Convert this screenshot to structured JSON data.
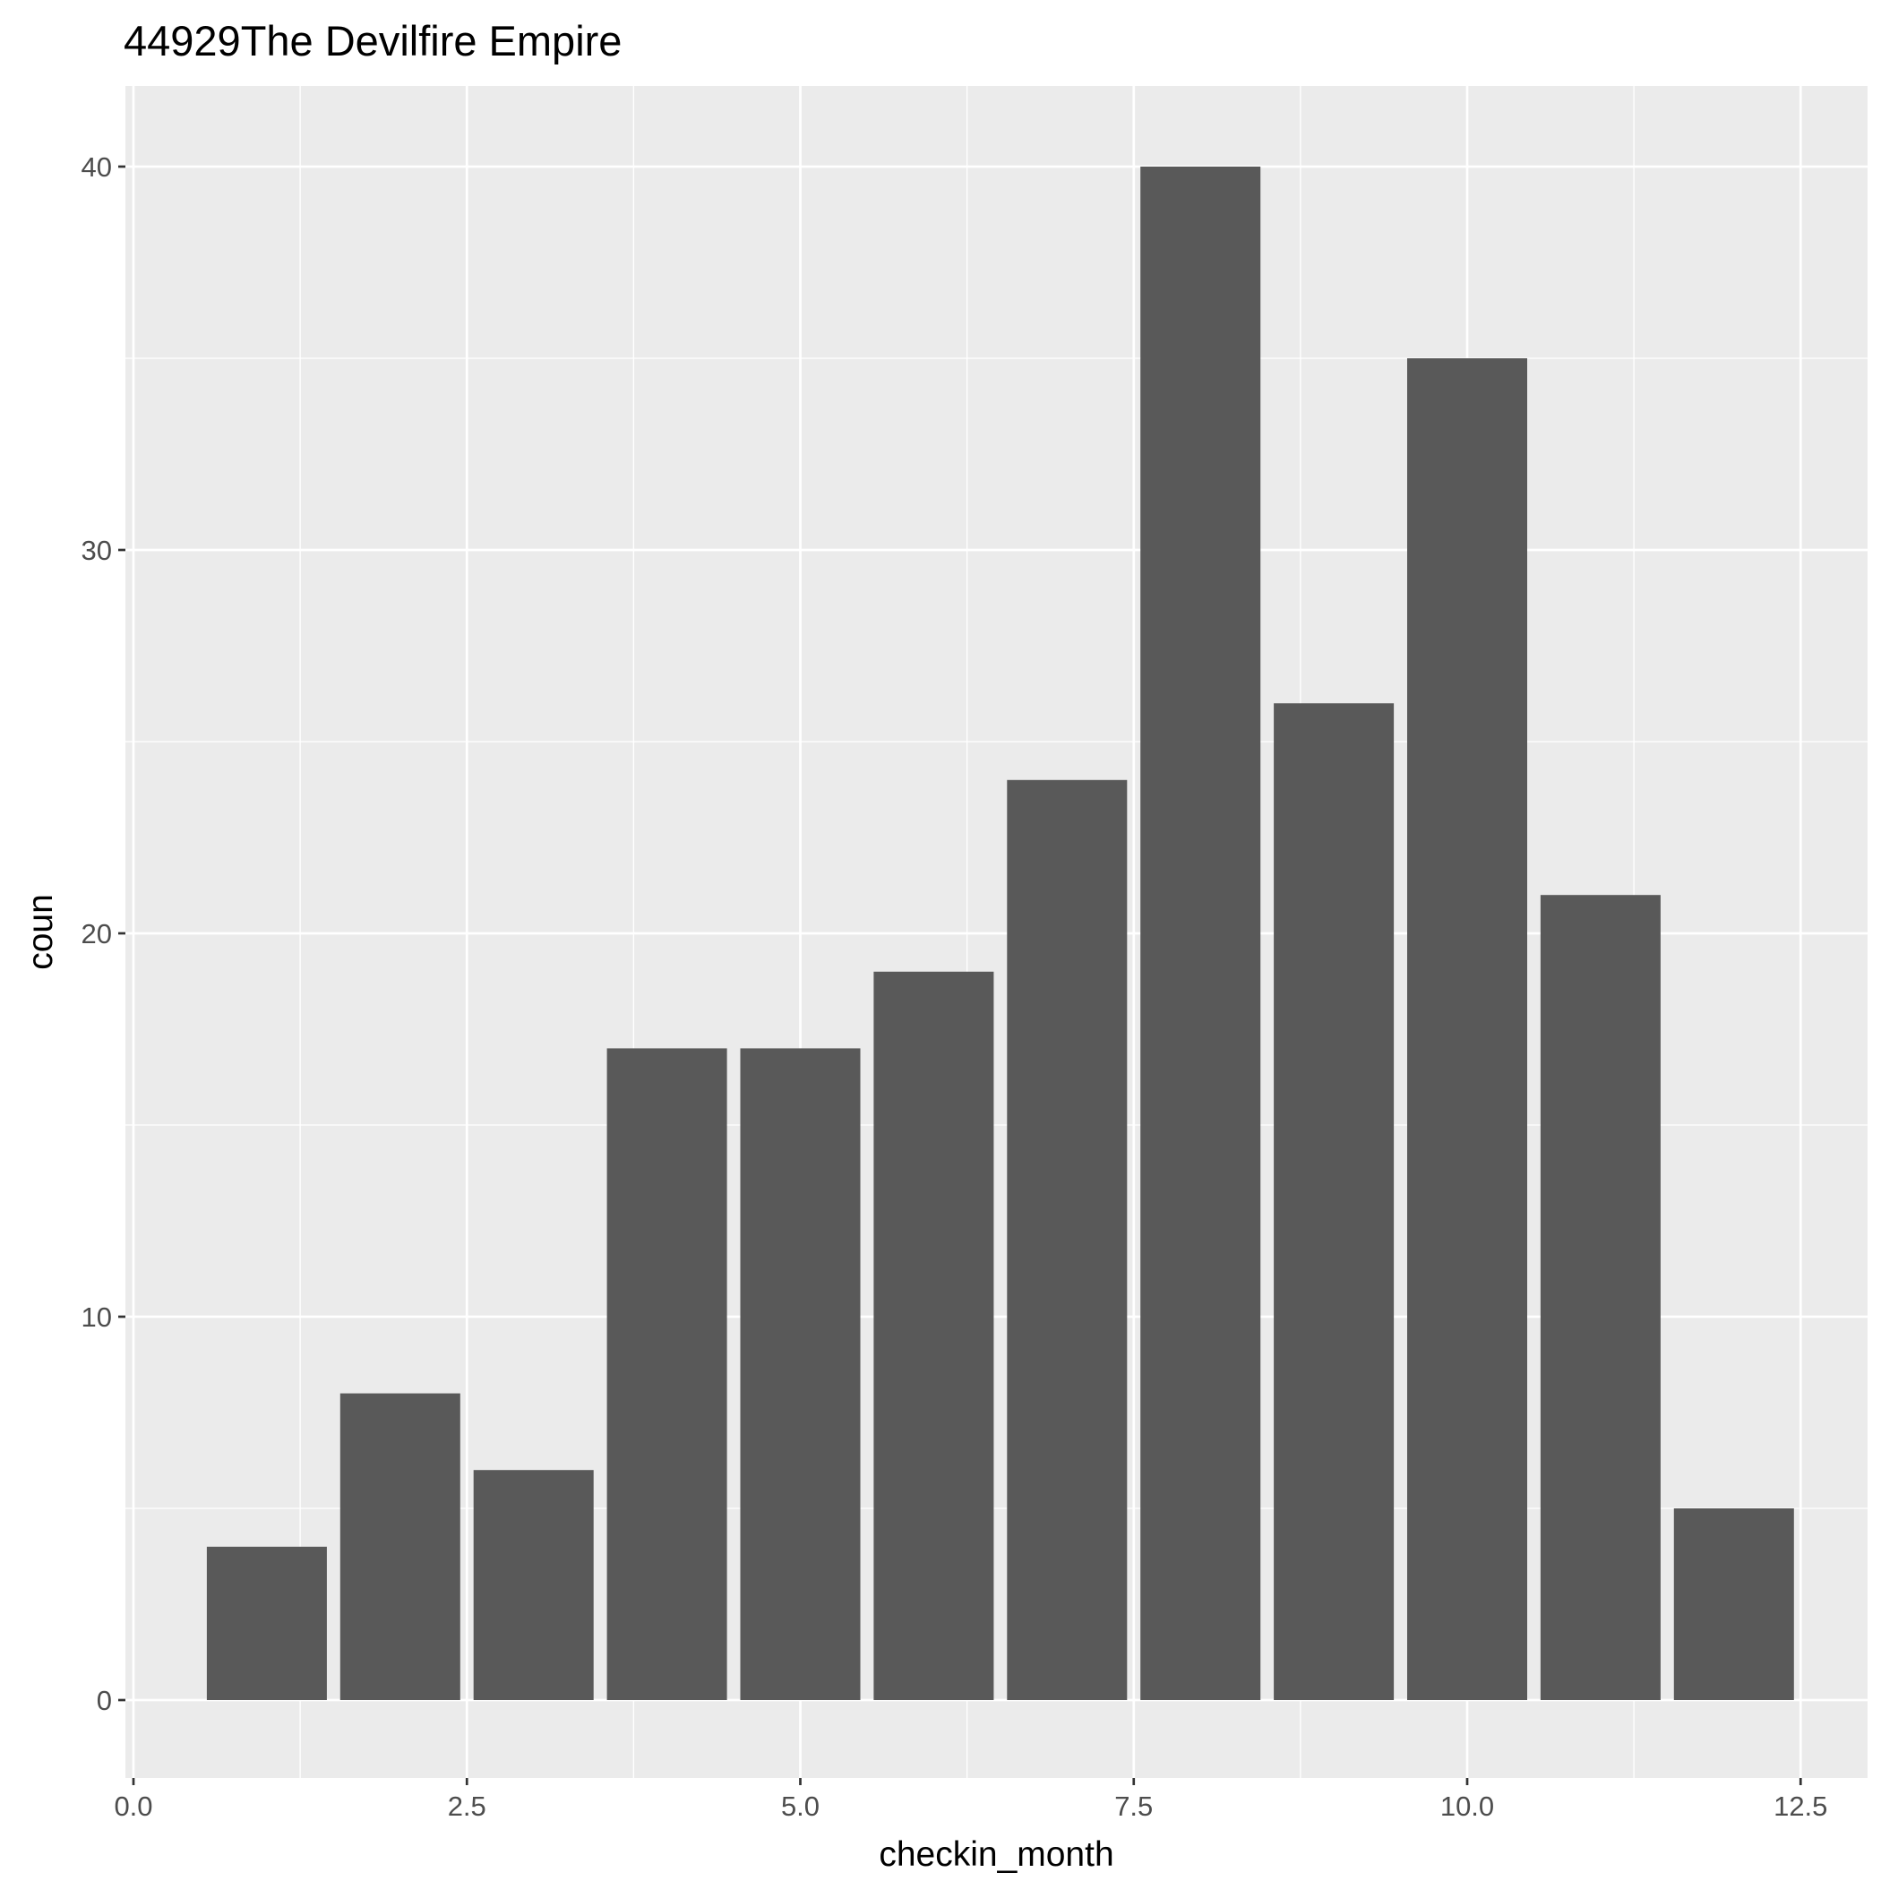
{
  "chart_data": {
    "type": "bar",
    "title": "44929The Devilfire Empire",
    "xlabel": "checkin_month",
    "ylabel": "coun",
    "x": [
      1,
      2,
      3,
      4,
      5,
      6,
      7,
      8,
      9,
      10,
      11,
      12
    ],
    "values": [
      4,
      8,
      6,
      17,
      17,
      19,
      24,
      40,
      26,
      35,
      21,
      5
    ],
    "bar_width": 0.9,
    "xlim": [
      0,
      12.5
    ],
    "ylim": [
      0,
      40
    ],
    "x_ticks": [
      0,
      2.5,
      5,
      7.5,
      10,
      12.5
    ],
    "x_tick_labels": [
      "0.0",
      "2.5",
      "5.0",
      "7.5",
      "10.0",
      "12.5"
    ],
    "y_ticks": [
      0,
      10,
      20,
      30,
      40
    ],
    "y_tick_labels": [
      "0",
      "10",
      "20",
      "30",
      "40"
    ],
    "grid": true,
    "legend": "none",
    "colors": {
      "panel": "#EBEBEB",
      "bar": "#595959",
      "grid": "#FFFFFF",
      "tick_text": "#4D4D4D"
    }
  }
}
